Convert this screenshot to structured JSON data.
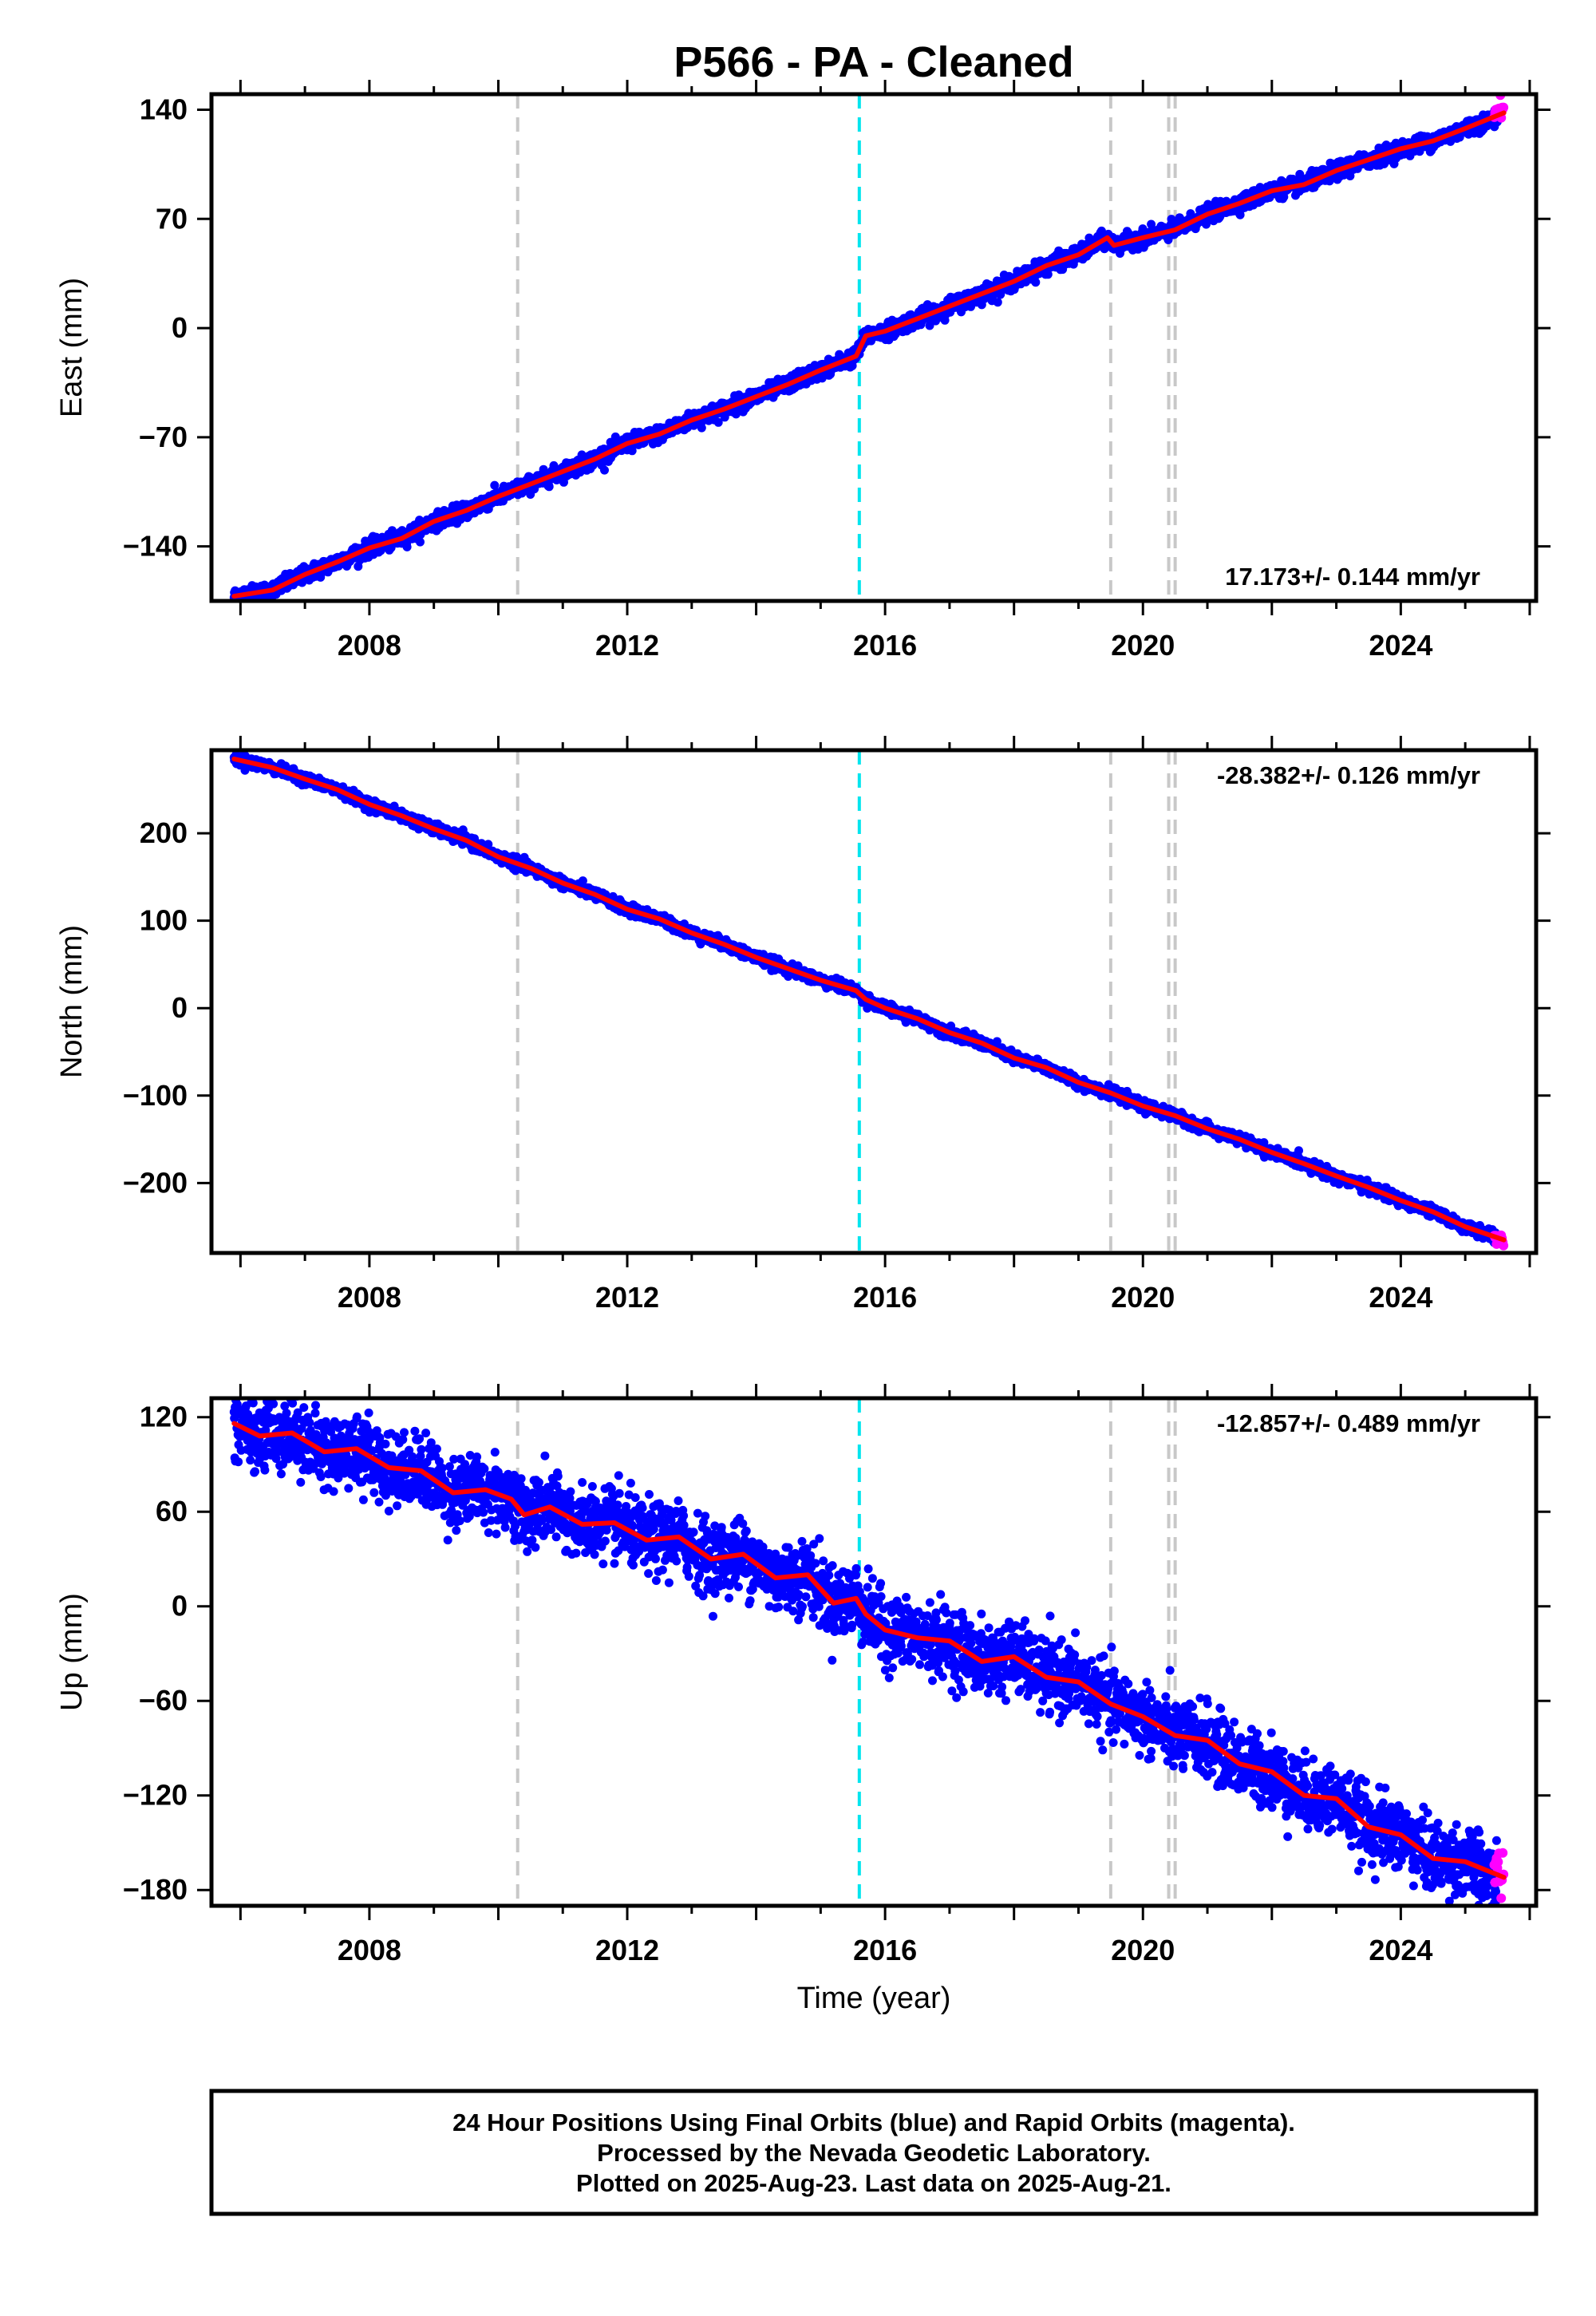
{
  "chart_data": [
    {
      "type": "scatter",
      "title": "P566  - PA - Cleaned",
      "ylabel": "East (mm)",
      "xlabel": "",
      "xlim": [
        2005.55,
        2026.1
      ],
      "ylim": [
        -175,
        150
      ],
      "yticks": [
        -140,
        -70,
        0,
        70,
        140
      ],
      "xticks": [
        2008,
        2012,
        2016,
        2020,
        2024
      ],
      "rate_label": "17.173+/- 0.144 mm/yr",
      "rate_position": "bottom-right",
      "break_lines": [
        {
          "x": 2010.3,
          "color": "#c8c8c8"
        },
        {
          "x": 2015.6,
          "color": "#00e5ee"
        },
        {
          "x": 2019.5,
          "color": "#c8c8c8"
        },
        {
          "x": 2020.4,
          "color": "#c8c8c8"
        },
        {
          "x": 2020.5,
          "color": "#c8c8c8"
        }
      ],
      "series": [
        {
          "name": "",
          "role": "final",
          "color": "#0000ff",
          "noise": 2.5,
          "x": [
            2005.9,
            2006.5,
            2007.0,
            2007.5,
            2008.0,
            2008.5,
            2009.0,
            2009.5,
            2010.0,
            2010.5,
            2011.0,
            2011.5,
            2012.0,
            2012.5,
            2013.0,
            2013.5,
            2014.0,
            2014.5,
            2015.0,
            2015.55,
            2015.7,
            2016.0,
            2016.5,
            2017.0,
            2017.5,
            2018.0,
            2018.5,
            2019.0,
            2019.45,
            2019.55,
            2020.0,
            2020.5,
            2021.0,
            2021.5,
            2022.0,
            2022.5,
            2023.0,
            2023.5,
            2024.0,
            2024.5,
            2025.0,
            2025.5
          ],
          "y": [
            -172,
            -168,
            -158,
            -150,
            -141,
            -135,
            -124,
            -117,
            -108,
            -100,
            -92,
            -84,
            -74,
            -68,
            -59,
            -52,
            -44,
            -36,
            -27,
            -18,
            -5,
            -2,
            6,
            14,
            22,
            30,
            40,
            47,
            58,
            53,
            58,
            63,
            73,
            80,
            88,
            92,
            101,
            108,
            115,
            120,
            128,
            135
          ]
        },
        {
          "name": "",
          "role": "rapid",
          "color": "#ff00ff",
          "noise": 3,
          "x": [
            2025.45,
            2025.5,
            2025.55,
            2025.6
          ],
          "y": [
            137,
            140,
            141,
            143
          ]
        },
        {
          "name": "",
          "role": "model",
          "color": "#ff0000",
          "x": [
            2005.9,
            2006.5,
            2007.0,
            2007.5,
            2008.0,
            2008.5,
            2009.0,
            2009.5,
            2010.0,
            2010.5,
            2011.0,
            2011.5,
            2012.0,
            2012.5,
            2013.0,
            2013.5,
            2014.0,
            2014.5,
            2015.0,
            2015.55,
            2015.7,
            2016.0,
            2016.5,
            2017.0,
            2017.5,
            2018.0,
            2018.5,
            2019.0,
            2019.45,
            2019.55,
            2020.0,
            2020.5,
            2021.0,
            2021.5,
            2022.0,
            2022.5,
            2023.0,
            2023.5,
            2024.0,
            2024.5,
            2025.0,
            2025.6
          ],
          "y": [
            -172,
            -168,
            -158,
            -150,
            -141,
            -135,
            -124,
            -117,
            -108,
            -100,
            -92,
            -84,
            -74,
            -68,
            -59,
            -52,
            -44,
            -36,
            -27,
            -18,
            -5,
            -2,
            6,
            14,
            22,
            30,
            40,
            47,
            58,
            53,
            58,
            63,
            73,
            80,
            88,
            92,
            101,
            108,
            115,
            120,
            128,
            138
          ]
        }
      ]
    },
    {
      "type": "scatter",
      "title": "",
      "ylabel": "North (mm)",
      "xlabel": "",
      "xlim": [
        2005.55,
        2026.1
      ],
      "ylim": [
        -280,
        295
      ],
      "yticks": [
        -200,
        -100,
        0,
        100,
        200
      ],
      "xticks": [
        2008,
        2012,
        2016,
        2020,
        2024
      ],
      "rate_label": "-28.382+/- 0.126 mm/yr",
      "rate_position": "top-right",
      "break_lines": [
        {
          "x": 2010.3,
          "color": "#c8c8c8"
        },
        {
          "x": 2015.6,
          "color": "#00e5ee"
        },
        {
          "x": 2019.5,
          "color": "#c8c8c8"
        },
        {
          "x": 2020.4,
          "color": "#c8c8c8"
        },
        {
          "x": 2020.5,
          "color": "#c8c8c8"
        }
      ],
      "series": [
        {
          "name": "",
          "role": "final",
          "color": "#0000ff",
          "noise": 3,
          "x": [
            2005.9,
            2006.5,
            2007.0,
            2007.5,
            2008.0,
            2008.5,
            2009.0,
            2009.5,
            2010.0,
            2010.5,
            2011.0,
            2011.5,
            2012.0,
            2012.5,
            2013.0,
            2013.5,
            2014.0,
            2014.5,
            2015.0,
            2015.55,
            2015.7,
            2016.0,
            2016.5,
            2017.0,
            2017.5,
            2018.0,
            2018.5,
            2019.0,
            2019.5,
            2020.0,
            2020.5,
            2021.0,
            2021.5,
            2022.0,
            2022.5,
            2023.0,
            2023.5,
            2024.0,
            2024.5,
            2025.0,
            2025.5
          ],
          "y": [
            285,
            275,
            262,
            250,
            233,
            220,
            205,
            192,
            173,
            160,
            143,
            130,
            113,
            102,
            86,
            73,
            58,
            45,
            32,
            20,
            10,
            0,
            -12,
            -28,
            -40,
            -57,
            -68,
            -85,
            -97,
            -112,
            -123,
            -138,
            -150,
            -165,
            -178,
            -192,
            -205,
            -220,
            -233,
            -250,
            -263
          ]
        },
        {
          "name": "",
          "role": "rapid",
          "color": "#ff00ff",
          "noise": 3,
          "x": [
            2025.45,
            2025.5,
            2025.55,
            2025.6
          ],
          "y": [
            -263,
            -265,
            -266,
            -268
          ]
        },
        {
          "name": "",
          "role": "model",
          "color": "#ff0000",
          "x": [
            2005.9,
            2006.5,
            2007.0,
            2007.5,
            2008.0,
            2008.5,
            2009.0,
            2009.5,
            2010.0,
            2010.5,
            2011.0,
            2011.5,
            2012.0,
            2012.5,
            2013.0,
            2013.5,
            2014.0,
            2014.5,
            2015.0,
            2015.55,
            2015.7,
            2016.0,
            2016.5,
            2017.0,
            2017.5,
            2018.0,
            2018.5,
            2019.0,
            2019.5,
            2020.0,
            2020.5,
            2021.0,
            2021.5,
            2022.0,
            2022.5,
            2023.0,
            2023.5,
            2024.0,
            2024.5,
            2025.0,
            2025.6
          ],
          "y": [
            285,
            275,
            262,
            250,
            233,
            220,
            205,
            192,
            173,
            160,
            143,
            130,
            113,
            102,
            86,
            73,
            58,
            45,
            32,
            20,
            10,
            0,
            -12,
            -28,
            -40,
            -57,
            -68,
            -85,
            -97,
            -112,
            -123,
            -138,
            -150,
            -165,
            -178,
            -192,
            -205,
            -220,
            -233,
            -250,
            -265
          ]
        }
      ]
    },
    {
      "type": "scatter",
      "title": "",
      "ylabel": "Up (mm)",
      "xlabel": "Time (year)",
      "xlim": [
        2005.55,
        2026.1
      ],
      "ylim": [
        -190,
        132
      ],
      "yticks": [
        -180,
        -120,
        -60,
        0,
        60,
        120
      ],
      "xticks": [
        2008,
        2012,
        2016,
        2020,
        2024
      ],
      "rate_label": "-12.857+/- 0.489 mm/yr",
      "rate_position": "top-right",
      "break_lines": [
        {
          "x": 2010.3,
          "color": "#c8c8c8"
        },
        {
          "x": 2015.6,
          "color": "#00e5ee"
        },
        {
          "x": 2019.5,
          "color": "#c8c8c8"
        },
        {
          "x": 2020.4,
          "color": "#c8c8c8"
        },
        {
          "x": 2020.5,
          "color": "#c8c8c8"
        }
      ],
      "series": [
        {
          "name": "",
          "role": "final",
          "color": "#0000ff",
          "noise": 11,
          "x": [
            2005.9,
            2006.3,
            2006.8,
            2007.3,
            2007.8,
            2008.3,
            2008.8,
            2009.3,
            2009.8,
            2010.2,
            2010.4,
            2010.8,
            2011.3,
            2011.8,
            2012.3,
            2012.8,
            2013.3,
            2013.8,
            2014.3,
            2014.8,
            2015.2,
            2015.55,
            2015.7,
            2016.0,
            2016.5,
            2017.0,
            2017.5,
            2018.0,
            2018.5,
            2019.0,
            2019.5,
            2020.0,
            2020.5,
            2021.0,
            2021.5,
            2022.0,
            2022.5,
            2023.0,
            2023.5,
            2024.0,
            2024.5,
            2025.0,
            2025.5
          ],
          "y": [
            116,
            108,
            110,
            98,
            100,
            88,
            86,
            72,
            74,
            68,
            58,
            63,
            52,
            53,
            42,
            44,
            30,
            33,
            18,
            20,
            2,
            5,
            -5,
            -15,
            -20,
            -22,
            -35,
            -32,
            -45,
            -48,
            -62,
            -70,
            -82,
            -85,
            -100,
            -105,
            -120,
            -122,
            -140,
            -145,
            -160,
            -162,
            -175
          ]
        },
        {
          "name": "",
          "role": "rapid",
          "color": "#ff00ff",
          "noise": 9,
          "x": [
            2025.45,
            2025.5,
            2025.55,
            2025.6
          ],
          "y": [
            -170,
            -160,
            -168,
            -172
          ]
        },
        {
          "name": "",
          "role": "model",
          "color": "#ff0000",
          "x": [
            2005.9,
            2006.3,
            2006.8,
            2007.3,
            2007.8,
            2008.3,
            2008.8,
            2009.3,
            2009.8,
            2010.2,
            2010.4,
            2010.8,
            2011.3,
            2011.8,
            2012.3,
            2012.8,
            2013.3,
            2013.8,
            2014.3,
            2014.8,
            2015.2,
            2015.55,
            2015.7,
            2016.0,
            2016.5,
            2017.0,
            2017.5,
            2018.0,
            2018.5,
            2019.0,
            2019.5,
            2020.0,
            2020.5,
            2021.0,
            2021.5,
            2022.0,
            2022.5,
            2023.0,
            2023.5,
            2024.0,
            2024.5,
            2025.0,
            2025.6
          ],
          "y": [
            116,
            108,
            110,
            98,
            100,
            88,
            86,
            72,
            74,
            68,
            58,
            63,
            52,
            53,
            42,
            44,
            30,
            33,
            18,
            20,
            2,
            5,
            -5,
            -15,
            -20,
            -22,
            -35,
            -32,
            -45,
            -48,
            -62,
            -70,
            -82,
            -85,
            -100,
            -105,
            -120,
            -122,
            -140,
            -145,
            -160,
            -162,
            -172
          ]
        }
      ]
    }
  ],
  "footer": {
    "line1": "24 Hour Positions Using Final Orbits (blue) and Rapid Orbits (magenta).",
    "line2": "Processed by the Nevada Geodetic Laboratory.",
    "line3": "Plotted on 2025-Aug-23. Last data on 2025-Aug-21."
  }
}
